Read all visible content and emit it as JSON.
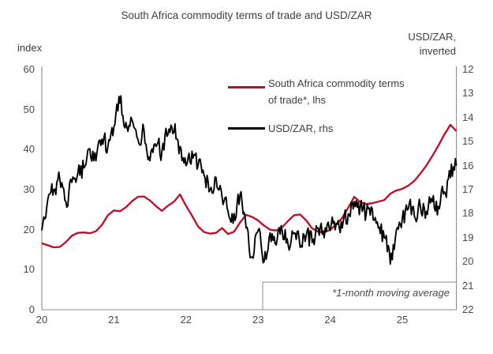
{
  "chart_data": {
    "type": "line",
    "title": "South Africa commodity terms of trade and USD/ZAR",
    "footnote": "*1-month moving average",
    "grid": false,
    "legend_position": "top-center-inside",
    "x_axis": {
      "tick_labels": [
        "20",
        "21",
        "22",
        "23",
        "24",
        "25"
      ],
      "start_year": 2020,
      "end_year_fraction": 2025.75,
      "frequency": "monthly"
    },
    "left_axis": {
      "label": "index",
      "range": [
        0,
        60
      ],
      "ticks": [
        60,
        50,
        40,
        30,
        20,
        10,
        0
      ]
    },
    "right_axis": {
      "label_line1": "USD/ZAR,",
      "label_line2": "inverted",
      "range": [
        12,
        22
      ],
      "ticks": [
        12,
        13,
        14,
        15,
        16,
        17,
        18,
        19,
        20,
        21,
        22
      ],
      "inverted": true
    },
    "series": [
      {
        "name": "South Africa commodity terms of trade*, lhs",
        "axis": "left",
        "color": "#c00a26",
        "stroke_width": 2.3,
        "noise": 0,
        "values": [
          16.6,
          16.1,
          15.6,
          15.7,
          16.9,
          18.5,
          19.2,
          19.3,
          19.1,
          19.6,
          21.2,
          23.6,
          24.8,
          24.6,
          25.6,
          27.1,
          28.2,
          28.3,
          27.3,
          25.9,
          24.7,
          26.0,
          27.0,
          28.8,
          26.0,
          23.5,
          20.8,
          19.4,
          19.0,
          19.2,
          20.4,
          18.9,
          19.5,
          21.8,
          23.7,
          23.2,
          22.3,
          21.0,
          20.0,
          19.8,
          20.6,
          22.2,
          23.6,
          23.8,
          22.3,
          20.3,
          19.5,
          19.3,
          20.0,
          21.3,
          23.0,
          25.5,
          28.2,
          26.9,
          26.4,
          26.6,
          27.0,
          27.4,
          29.0,
          29.8,
          30.2,
          31.0,
          32.2,
          34.0,
          36.0,
          38.4,
          41.0,
          43.8,
          46.2,
          44.6
        ]
      },
      {
        "name": "USD/ZAR, rhs",
        "axis": "right",
        "color": "#000000",
        "stroke_width": 1.9,
        "noise": 0.26,
        "values": [
          18.7,
          17.4,
          17.0,
          16.6,
          17.5,
          16.7,
          16.3,
          16.1,
          15.3,
          15.8,
          14.9,
          15.2,
          14.4,
          13.4,
          14.2,
          14.1,
          14.9,
          14.5,
          15.8,
          15.2,
          15.4,
          14.7,
          14.6,
          15.2,
          16.0,
          15.4,
          16.0,
          16.4,
          17.0,
          16.5,
          17.3,
          17.9,
          18.0,
          17.2,
          18.6,
          19.8,
          18.7,
          20.0,
          18.8,
          19.3,
          18.7,
          19.3,
          18.8,
          19.4,
          18.9,
          19.2,
          18.6,
          19.0,
          18.7,
          18.4,
          18.6,
          18.0,
          17.5,
          17.7,
          18.0,
          17.8,
          18.6,
          19.0,
          20.1,
          18.7,
          18.2,
          17.8,
          18.1,
          17.7,
          17.9,
          17.5,
          17.7,
          17.1,
          16.5,
          16.0
        ]
      }
    ],
    "colors": {
      "axis_line": "#8c8c8c",
      "text": "#3d3d3d"
    }
  }
}
